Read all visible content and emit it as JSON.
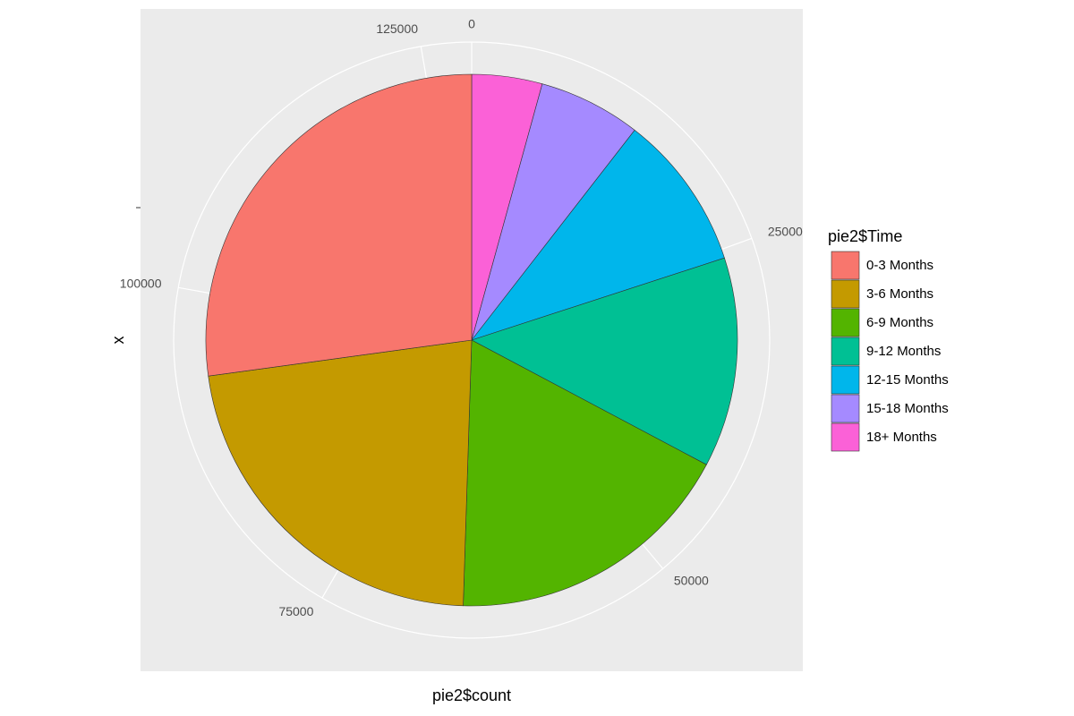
{
  "chart_data": {
    "type": "pie",
    "categories": [
      "0-3 Months",
      "3-6 Months",
      "6-9 Months",
      "9-12 Months",
      "12-15 Months",
      "15-18 Months",
      "18+ Months"
    ],
    "values": [
      34900,
      28700,
      22800,
      16400,
      12200,
      8000,
      5500
    ],
    "colors": [
      "#F8766D",
      "#C49A00",
      "#53B400",
      "#00C094",
      "#00B6EB",
      "#A58AFF",
      "#FB61D7"
    ],
    "xlim": [
      0,
      128500
    ],
    "xticks": [
      0,
      25000,
      50000,
      75000,
      100000,
      125000
    ],
    "x_label": "pie2$count",
    "y_label": "x",
    "legend_title": "pie2$Time",
    "legend": "right",
    "grid": true
  }
}
